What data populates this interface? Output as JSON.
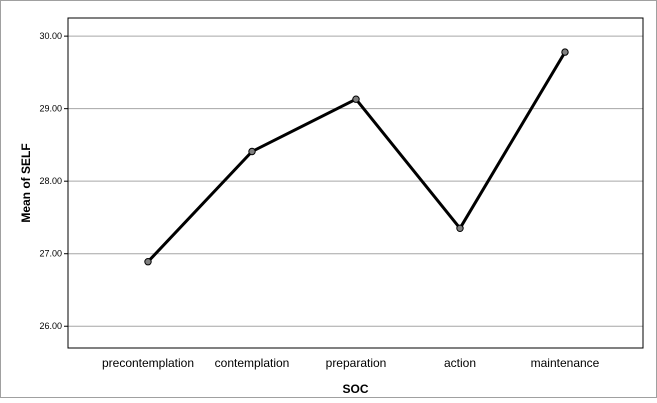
{
  "chart_data": {
    "type": "line",
    "categories": [
      "precontemplation",
      "contemplation",
      "preparation",
      "action",
      "maintenance"
    ],
    "series": [
      {
        "values": [
          26.89,
          28.41,
          29.13,
          27.35,
          29.78
        ]
      }
    ],
    "xlabel": "SOC",
    "ylabel": "Mean of SELF",
    "ylim": [
      25.7,
      30.25
    ],
    "yticks": [
      "26.00",
      "27.00",
      "28.00",
      "29.00",
      "30.00"
    ],
    "grid": true,
    "legend": "none",
    "colors": {
      "line": "#000000",
      "marker_fill": "#7f7f7f",
      "grid": "#a6a6a6",
      "frame": "#000000"
    }
  }
}
